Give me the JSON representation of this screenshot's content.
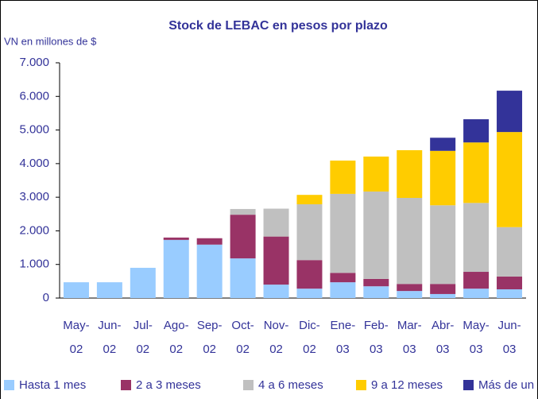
{
  "chart_data": {
    "type": "stacked_bar",
    "title": "Stock de LEBAC en pesos por plazo",
    "y_axis_label": "VN en millones de $",
    "categories": [
      [
        "May-",
        "02"
      ],
      [
        "Jun-",
        "02"
      ],
      [
        "Jul-",
        "02"
      ],
      [
        "Ago-",
        "02"
      ],
      [
        "Sep-",
        "02"
      ],
      [
        "Oct-",
        "02"
      ],
      [
        "Nov-",
        "02"
      ],
      [
        "Dic-",
        "02"
      ],
      [
        "Ene-",
        "03"
      ],
      [
        "Feb-",
        "03"
      ],
      [
        "Mar-",
        "03"
      ],
      [
        "Abr-",
        "03"
      ],
      [
        "May-",
        "03"
      ],
      [
        "Jun-",
        "03"
      ]
    ],
    "series": [
      {
        "name": "Hasta 1 mes",
        "color": "#99ccff",
        "values": [
          470,
          470,
          900,
          1730,
          1590,
          1180,
          400,
          280,
          470,
          350,
          210,
          120,
          280,
          260
        ]
      },
      {
        "name": "2 a 3 meses",
        "color": "#993366",
        "values": [
          null,
          null,
          null,
          70,
          190,
          1300,
          1430,
          850,
          280,
          220,
          210,
          300,
          500,
          380
        ]
      },
      {
        "name": "4 a 6 meses",
        "color": "#c0c0c0",
        "values": [
          null,
          null,
          null,
          null,
          null,
          170,
          830,
          1660,
          2350,
          2600,
          2560,
          2340,
          2050,
          1470
        ]
      },
      {
        "name": "9 a 12 meses",
        "color": "#ffcc00",
        "values": [
          null,
          null,
          null,
          null,
          null,
          null,
          null,
          280,
          990,
          1040,
          1420,
          1620,
          1800,
          2830
        ]
      },
      {
        "name": "Más de un año",
        "color": "#333399",
        "values": [
          null,
          null,
          null,
          null,
          null,
          null,
          null,
          null,
          null,
          null,
          null,
          390,
          690,
          1230
        ]
      }
    ],
    "ylim": [
      0,
      7000
    ],
    "yticks": [
      {
        "value": 0,
        "label": "0"
      },
      {
        "value": 1000,
        "label": "1.000"
      },
      {
        "value": 2000,
        "label": "2.000"
      },
      {
        "value": 3000,
        "label": "3.000"
      },
      {
        "value": 4000,
        "label": "4.000"
      },
      {
        "value": 5000,
        "label": "5.000"
      },
      {
        "value": 6000,
        "label": "6.000"
      },
      {
        "value": 7000,
        "label": "7.000"
      }
    ],
    "legend": "bottom"
  }
}
